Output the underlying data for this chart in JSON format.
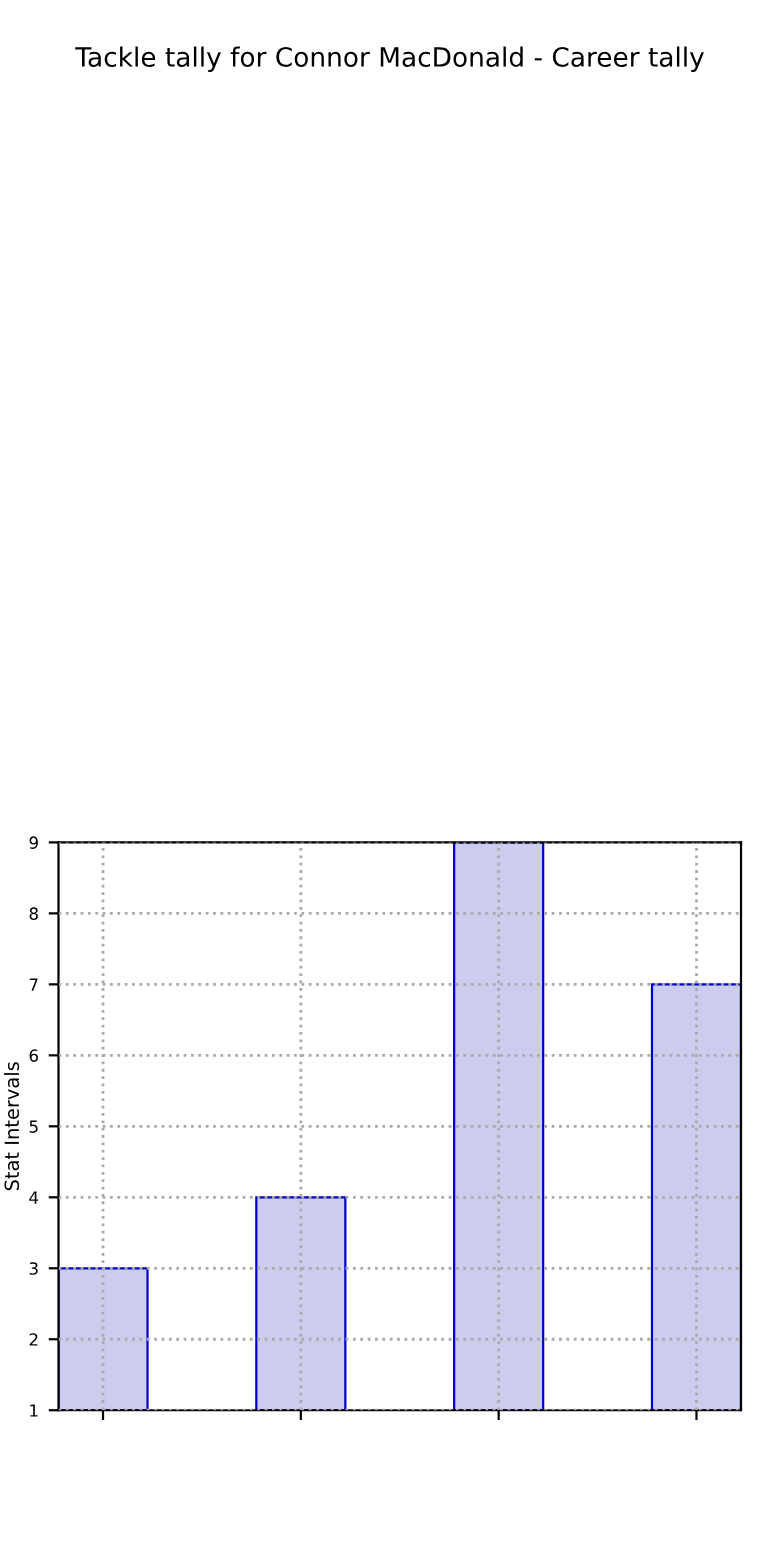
{
  "chart_data": {
    "type": "bar",
    "title": "Tackle tally for Connor MacDonald - Career tally",
    "ylabel": "Stat Intervals",
    "categories": [
      null,
      null,
      null,
      null
    ],
    "series": [
      {
        "color": "#ccccee",
        "values": [
          3,
          4,
          9,
          7
        ]
      }
    ],
    "ylim": [
      1,
      9
    ],
    "yticks": [
      1,
      2,
      3,
      4,
      5,
      6,
      7,
      8,
      9
    ],
    "grid": true
  }
}
